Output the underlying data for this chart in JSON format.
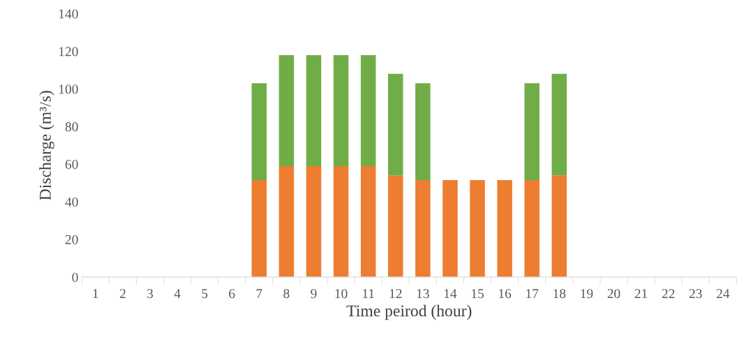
{
  "chart_data": {
    "type": "bar",
    "stacked": true,
    "xlabel": "Time peirod (hour)",
    "ylabel": "Discharge (m³/s)",
    "categories": [
      "1",
      "2",
      "3",
      "4",
      "5",
      "6",
      "7",
      "8",
      "9",
      "10",
      "11",
      "12",
      "13",
      "14",
      "15",
      "16",
      "17",
      "18",
      "19",
      "20",
      "21",
      "22",
      "23",
      "24"
    ],
    "series": [
      {
        "color": "#ed7d31",
        "values": [
          null,
          null,
          null,
          null,
          null,
          null,
          51.5,
          59,
          59,
          59,
          59,
          54,
          51.5,
          51.5,
          51.5,
          51.5,
          51.5,
          54,
          null,
          null,
          null,
          null,
          null,
          null
        ]
      },
      {
        "color": "#70ad47",
        "values": [
          null,
          null,
          null,
          null,
          null,
          null,
          51.5,
          59,
          59,
          59,
          59,
          54,
          51.5,
          null,
          null,
          null,
          51.5,
          54,
          null,
          null,
          null,
          null,
          null,
          null
        ]
      }
    ],
    "ylim": [
      0,
      140
    ],
    "yticks": [
      0,
      20,
      40,
      60,
      80,
      100,
      120,
      140
    ],
    "grid": false
  }
}
